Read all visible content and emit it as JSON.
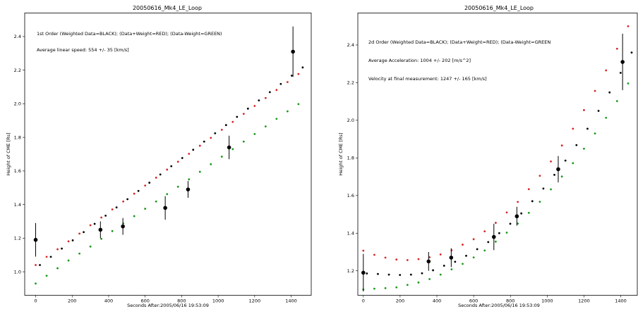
{
  "chart_data": [
    {
      "type": "scatter",
      "title": "20050616_Mk4_LE_Loop",
      "xlabel": "Seconds After:2005/06/16 19:53:09",
      "ylabel": "Height of CME [Rs]",
      "xlim": [
        -60,
        1510
      ],
      "ylim": [
        0.86,
        2.54
      ],
      "xticks": [
        0,
        200,
        400,
        600,
        800,
        1000,
        1200,
        1400
      ],
      "yticks": [
        1.0,
        1.2,
        1.4,
        1.6,
        1.8,
        2.0,
        2.2,
        2.4
      ],
      "annotations": [
        "1st Order (Weighted Data=BLACK); (Data+Weight=RED); (Data-Weight=GREEN)",
        "Average linear speed: 554 +/- 35 [km/s]"
      ],
      "colors": {
        "weighted": "#000000",
        "plus": "#d62728",
        "minus": "#1a9a1a"
      },
      "series": [
        {
          "x": [
            0,
            60,
            120,
            180,
            240,
            300,
            360,
            420,
            480,
            540,
            600,
            660,
            720,
            780,
            840,
            900,
            960,
            1020,
            1080,
            1140,
            1200,
            1260,
            1320,
            1380,
            1440
          ],
          "y": [
            1.04,
            1.089,
            1.138,
            1.187,
            1.236,
            1.285,
            1.334,
            1.383,
            1.432,
            1.481,
            1.53,
            1.579,
            1.628,
            1.677,
            1.726,
            1.775,
            1.824,
            1.873,
            1.922,
            1.971,
            2.02,
            2.069,
            2.118,
            2.167,
            2.216
          ],
          "color": "#000000",
          "offset": 6
        },
        {
          "x": [
            0,
            60,
            120,
            180,
            240,
            300,
            360,
            420,
            480,
            540,
            600,
            660,
            720,
            780,
            840,
            900,
            960,
            1020,
            1080,
            1140,
            1200,
            1260,
            1320,
            1380,
            1440
          ],
          "y": [
            1.04,
            1.089,
            1.134,
            1.181,
            1.227,
            1.277,
            1.323,
            1.371,
            1.418,
            1.465,
            1.513,
            1.56,
            1.608,
            1.655,
            1.702,
            1.75,
            1.797,
            1.845,
            1.892,
            1.94,
            1.987,
            2.034,
            2.082,
            2.129,
            2.177
          ],
          "color": "#d62728",
          "offset": 0
        },
        {
          "x": [
            0,
            60,
            120,
            180,
            240,
            300,
            360,
            420,
            480,
            540,
            600,
            660,
            720,
            780,
            840,
            900,
            960,
            1020,
            1080,
            1140,
            1200,
            1260,
            1320,
            1380,
            1440
          ],
          "y": [
            0.93,
            0.976,
            1.021,
            1.067,
            1.108,
            1.15,
            1.196,
            1.242,
            1.288,
            1.331,
            1.375,
            1.418,
            1.462,
            1.506,
            1.55,
            1.595,
            1.64,
            1.685,
            1.73,
            1.775,
            1.82,
            1.865,
            1.91,
            1.955,
            1.998
          ],
          "color": "#1a9a1a",
          "offset": 0
        }
      ],
      "measurements": [
        {
          "x": 0,
          "y": 1.19,
          "err": 0.1
        },
        {
          "x": 355,
          "y": 1.25,
          "err": 0.05
        },
        {
          "x": 478,
          "y": 1.27,
          "err": 0.05
        },
        {
          "x": 710,
          "y": 1.38,
          "err": 0.07
        },
        {
          "x": 835,
          "y": 1.49,
          "err": 0.05
        },
        {
          "x": 1060,
          "y": 1.74,
          "err": 0.07
        },
        {
          "x": 1410,
          "y": 2.31,
          "err": 0.15
        }
      ]
    },
    {
      "type": "scatter",
      "title": "20050616_Mk4_LE_Loop",
      "xlabel": "Seconds After:2005/06/16 19:53:09",
      "ylabel": "Height of CME [Rs]",
      "xlim": [
        -30,
        1490
      ],
      "ylim": [
        1.07,
        2.57
      ],
      "xticks": [
        0,
        200,
        400,
        600,
        800,
        1000,
        1200,
        1400
      ],
      "yticks": [
        1.2,
        1.4,
        1.6,
        1.8,
        2.0,
        2.2,
        2.4
      ],
      "annotations": [
        "2d Order (Weighted Data=BLACK); (Data+Weight=RED); (Data-Weight=GREEN",
        "Average Acceleration: 1004 +/- 202 [m/s^2]",
        "Velocity at final measurement: 1247 +/- 165 [km/s]"
      ],
      "colors": {
        "weighted": "#000000",
        "plus": "#d62728",
        "minus": "#1a9a1a"
      },
      "series": [
        {
          "x": [
            0,
            60,
            120,
            180,
            240,
            300,
            360,
            420,
            480,
            540,
            600,
            660,
            720,
            780,
            840,
            900,
            960,
            1020,
            1080,
            1140,
            1200,
            1260,
            1320,
            1380,
            1440
          ],
          "y": [
            1.186,
            1.183,
            1.18,
            1.178,
            1.18,
            1.187,
            1.203,
            1.227,
            1.248,
            1.28,
            1.315,
            1.353,
            1.4,
            1.45,
            1.505,
            1.57,
            1.637,
            1.71,
            1.786,
            1.868,
            1.955,
            2.05,
            2.148,
            2.252,
            2.36
          ],
          "color": "#000000",
          "offset": 5
        },
        {
          "x": [
            0,
            60,
            120,
            180,
            240,
            300,
            360,
            420,
            480,
            540,
            600,
            660,
            720,
            780,
            840,
            900,
            960,
            1020,
            1080,
            1140,
            1200,
            1260,
            1320,
            1380,
            1440
          ],
          "y": [
            1.307,
            1.285,
            1.27,
            1.26,
            1.257,
            1.262,
            1.272,
            1.287,
            1.309,
            1.339,
            1.368,
            1.41,
            1.455,
            1.51,
            1.566,
            1.634,
            1.705,
            1.781,
            1.866,
            1.955,
            2.054,
            2.156,
            2.265,
            2.38,
            2.5
          ],
          "color": "#d62728",
          "offset": 0
        },
        {
          "x": [
            0,
            60,
            120,
            180,
            240,
            300,
            360,
            420,
            480,
            540,
            600,
            660,
            720,
            780,
            840,
            900,
            960,
            1020,
            1080,
            1140,
            1200,
            1260,
            1320,
            1380,
            1440
          ],
          "y": [
            1.101,
            1.105,
            1.108,
            1.112,
            1.125,
            1.138,
            1.156,
            1.18,
            1.208,
            1.237,
            1.271,
            1.308,
            1.355,
            1.403,
            1.451,
            1.508,
            1.567,
            1.633,
            1.701,
            1.772,
            1.849,
            1.93,
            2.013,
            2.102,
            2.196
          ],
          "color": "#1a9a1a",
          "offset": 0
        }
      ],
      "measurements": [
        {
          "x": 0,
          "y": 1.19,
          "err": 0.1
        },
        {
          "x": 355,
          "y": 1.25,
          "err": 0.05
        },
        {
          "x": 478,
          "y": 1.27,
          "err": 0.05
        },
        {
          "x": 710,
          "y": 1.38,
          "err": 0.07
        },
        {
          "x": 835,
          "y": 1.49,
          "err": 0.05
        },
        {
          "x": 1060,
          "y": 1.74,
          "err": 0.07
        },
        {
          "x": 1410,
          "y": 2.31,
          "err": 0.15
        }
      ]
    }
  ]
}
